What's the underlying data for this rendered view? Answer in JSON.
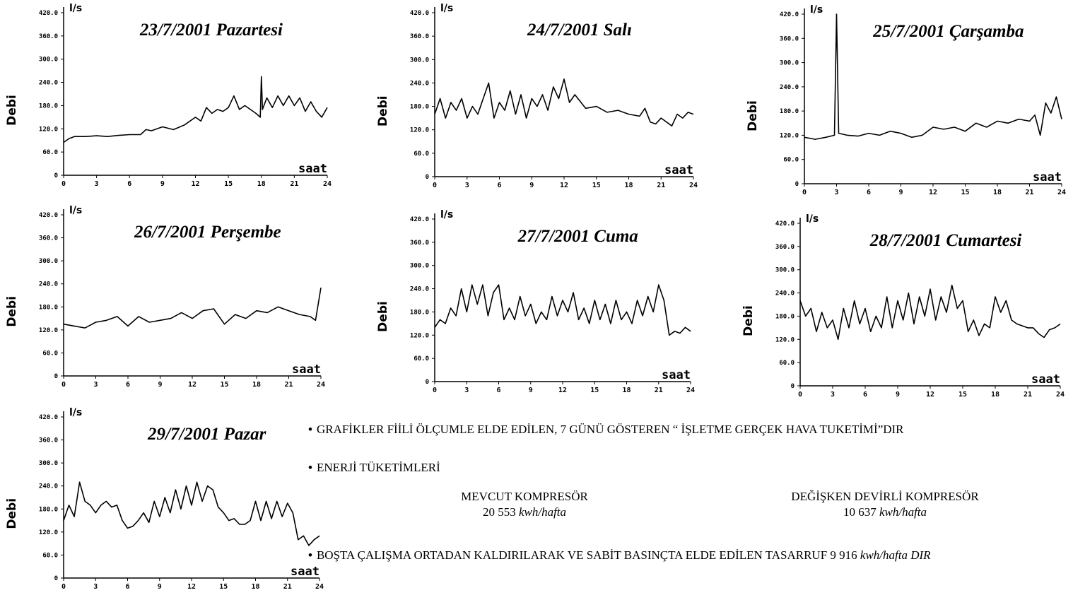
{
  "chart_data": [
    {
      "type": "line",
      "title": "23/7/2001 Pazartesi",
      "ylabel": "Debi",
      "unit": "l/s",
      "xlabel": "saat",
      "yticks": [
        "420.0",
        "360.0",
        "300.0",
        "240.0",
        "180.0",
        "120.0",
        "60.0",
        "0"
      ],
      "xticks": [
        "0",
        "3",
        "6",
        "9",
        "12",
        "15",
        "18",
        "21",
        "24"
      ],
      "xlim": [
        0,
        24
      ],
      "ylim": [
        0,
        420
      ],
      "series": [
        {
          "x": [
            0,
            0.5,
            1,
            2,
            3,
            4,
            5,
            6,
            7,
            7.5,
            8,
            9,
            10,
            11,
            12,
            12.5,
            13,
            13.5,
            14,
            14.5,
            15,
            15.5,
            16,
            16.5,
            17,
            17.5,
            17.9,
            18,
            18.1,
            18.5,
            19,
            19.5,
            20,
            20.5,
            21,
            21.5,
            22,
            22.5,
            23,
            23.5,
            24
          ],
          "y": [
            85,
            95,
            100,
            100,
            102,
            100,
            103,
            105,
            105,
            118,
            115,
            125,
            118,
            130,
            150,
            140,
            175,
            160,
            170,
            165,
            175,
            205,
            170,
            180,
            170,
            160,
            150,
            255,
            170,
            200,
            175,
            205,
            180,
            205,
            180,
            200,
            165,
            190,
            165,
            150,
            175
          ]
        }
      ]
    },
    {
      "type": "line",
      "title": "24/7/2001 Salı",
      "ylabel": "Debi",
      "unit": "l/s",
      "xlabel": "saat",
      "yticks": [
        "420.0",
        "360.0",
        "300.0",
        "240.0",
        "180.0",
        "120.0",
        "60.0",
        "0"
      ],
      "xticks": [
        "0",
        "3",
        "6",
        "9",
        "12",
        "15",
        "18",
        "21",
        "24"
      ],
      "xlim": [
        0,
        24
      ],
      "ylim": [
        0,
        420
      ],
      "series": [
        {
          "x": [
            0,
            0.5,
            1,
            1.5,
            2,
            2.5,
            3,
            3.5,
            4,
            4.5,
            5,
            5.5,
            6,
            6.5,
            7,
            7.5,
            8,
            8.5,
            9,
            9.5,
            10,
            10.5,
            11,
            11.5,
            12,
            12.5,
            13,
            14,
            15,
            16,
            17,
            18,
            19,
            19.5,
            20,
            20.5,
            21,
            22,
            22.5,
            23,
            23.5,
            24
          ],
          "y": [
            160,
            200,
            150,
            190,
            170,
            200,
            150,
            180,
            160,
            200,
            240,
            150,
            190,
            170,
            220,
            160,
            210,
            150,
            200,
            180,
            210,
            170,
            230,
            200,
            250,
            190,
            210,
            175,
            180,
            165,
            170,
            160,
            155,
            175,
            140,
            135,
            150,
            130,
            160,
            150,
            165,
            160
          ]
        }
      ]
    },
    {
      "type": "line",
      "title": "25/7/2001 Çarşamba",
      "ylabel": "Debi",
      "unit": "l/s",
      "xlabel": "saat",
      "yticks": [
        "420.0",
        "360.0",
        "300.0",
        "240.0",
        "180.0",
        "120.0",
        "60.0",
        "0"
      ],
      "xticks": [
        "0",
        "3",
        "6",
        "9",
        "12",
        "15",
        "18",
        "21",
        "24"
      ],
      "xlim": [
        0,
        24
      ],
      "ylim": [
        0,
        420
      ],
      "series": [
        {
          "x": [
            0,
            1,
            2,
            2.8,
            3,
            3.2,
            4,
            5,
            6,
            7,
            8,
            9,
            10,
            11,
            12,
            13,
            14,
            15,
            16,
            17,
            18,
            19,
            20,
            21,
            21.5,
            22,
            22.5,
            23,
            23.5,
            24
          ],
          "y": [
            115,
            110,
            115,
            120,
            420,
            125,
            120,
            118,
            125,
            120,
            130,
            125,
            115,
            120,
            140,
            135,
            140,
            130,
            150,
            140,
            155,
            150,
            160,
            155,
            170,
            120,
            200,
            175,
            215,
            160
          ]
        }
      ]
    },
    {
      "type": "line",
      "title": "26/7/2001 Perşembe",
      "ylabel": "Debi",
      "unit": "l/s",
      "xlabel": "saat",
      "yticks": [
        "420.0",
        "360.0",
        "300.0",
        "240.0",
        "180.0",
        "120.0",
        "60.0",
        "0"
      ],
      "xticks": [
        "0",
        "3",
        "6",
        "9",
        "12",
        "15",
        "18",
        "21",
        "24"
      ],
      "xlim": [
        0,
        24
      ],
      "ylim": [
        0,
        420
      ],
      "series": [
        {
          "x": [
            0,
            1,
            2,
            3,
            4,
            5,
            6,
            7,
            8,
            9,
            10,
            11,
            12,
            13,
            14,
            15,
            16,
            17,
            18,
            19,
            20,
            21,
            22,
            23,
            23.5,
            24
          ],
          "y": [
            135,
            130,
            125,
            140,
            145,
            155,
            130,
            155,
            140,
            145,
            150,
            165,
            150,
            170,
            175,
            135,
            160,
            150,
            170,
            165,
            180,
            170,
            160,
            155,
            145,
            230
          ]
        }
      ]
    },
    {
      "type": "line",
      "title": "27/7/2001 Cuma",
      "ylabel": "Debi",
      "unit": "l/s",
      "xlabel": "saat",
      "yticks": [
        "420.0",
        "360.0",
        "300.0",
        "240.0",
        "180.0",
        "120.0",
        "60.0",
        "0"
      ],
      "xticks": [
        "0",
        "3",
        "6",
        "9",
        "12",
        "15",
        "18",
        "21",
        "24"
      ],
      "xlim": [
        0,
        24
      ],
      "ylim": [
        0,
        420
      ],
      "series": [
        {
          "x": [
            0,
            0.5,
            1,
            1.5,
            2,
            2.5,
            3,
            3.5,
            4,
            4.5,
            5,
            5.5,
            6,
            6.5,
            7,
            7.5,
            8,
            8.5,
            9,
            9.5,
            10,
            10.5,
            11,
            11.5,
            12,
            12.5,
            13,
            13.5,
            14,
            14.5,
            15,
            15.5,
            16,
            16.5,
            17,
            17.5,
            18,
            18.5,
            19,
            19.5,
            20,
            20.5,
            21,
            21.5,
            22,
            22.5,
            23,
            23.5,
            24
          ],
          "y": [
            140,
            160,
            150,
            190,
            170,
            240,
            180,
            250,
            200,
            250,
            170,
            230,
            250,
            160,
            190,
            160,
            220,
            170,
            200,
            150,
            180,
            160,
            220,
            170,
            210,
            180,
            230,
            160,
            190,
            150,
            210,
            160,
            200,
            150,
            210,
            160,
            180,
            150,
            210,
            170,
            220,
            180,
            250,
            210,
            120,
            130,
            125,
            140,
            130
          ]
        }
      ]
    },
    {
      "type": "line",
      "title": "28/7/2001 Cumartesi",
      "ylabel": "Debi",
      "unit": "l/s",
      "xlabel": "saat",
      "yticks": [
        "420.0",
        "360.0",
        "300.0",
        "240.0",
        "180.0",
        "120.0",
        "60.0",
        "0"
      ],
      "xticks": [
        "0",
        "3",
        "6",
        "9",
        "12",
        "15",
        "18",
        "21",
        "24"
      ],
      "xlim": [
        0,
        24
      ],
      "ylim": [
        0,
        420
      ],
      "series": [
        {
          "x": [
            0,
            0.5,
            1,
            1.5,
            2,
            2.5,
            3,
            3.5,
            4,
            4.5,
            5,
            5.5,
            6,
            6.5,
            7,
            7.5,
            8,
            8.5,
            9,
            9.5,
            10,
            10.5,
            11,
            11.5,
            12,
            12.5,
            13,
            13.5,
            14,
            14.5,
            15,
            15.5,
            16,
            16.5,
            17,
            17.5,
            18,
            18.5,
            19,
            19.5,
            20,
            20.5,
            21,
            21.5,
            22,
            22.5,
            23,
            23.5,
            24
          ],
          "y": [
            220,
            180,
            200,
            140,
            190,
            150,
            170,
            120,
            200,
            150,
            220,
            160,
            200,
            140,
            180,
            150,
            230,
            150,
            220,
            170,
            240,
            160,
            230,
            180,
            250,
            170,
            230,
            190,
            260,
            200,
            220,
            140,
            170,
            130,
            160,
            150,
            230,
            190,
            220,
            170,
            160,
            155,
            150,
            150,
            135,
            125,
            145,
            150,
            160
          ]
        }
      ]
    },
    {
      "type": "line",
      "title": "29/7/2001 Pazar",
      "ylabel": "Debi",
      "unit": "l/s",
      "xlabel": "saat",
      "yticks": [
        "420.0",
        "360.0",
        "300.0",
        "240.0",
        "180.0",
        "120.0",
        "60.0",
        "0"
      ],
      "xticks": [
        "0",
        "3",
        "6",
        "9",
        "12",
        "15",
        "18",
        "21",
        "24"
      ],
      "xlim": [
        0,
        24
      ],
      "ylim": [
        0,
        420
      ],
      "series": [
        {
          "x": [
            0,
            0.5,
            1,
            1.5,
            2,
            2.5,
            3,
            3.5,
            4,
            4.5,
            5,
            5.5,
            6,
            6.5,
            7,
            7.5,
            8,
            8.5,
            9,
            9.5,
            10,
            10.5,
            11,
            11.5,
            12,
            12.5,
            13,
            13.5,
            14,
            14.5,
            15,
            15.5,
            16,
            16.5,
            17,
            17.5,
            18,
            18.5,
            19,
            19.5,
            20,
            20.5,
            21,
            21.5,
            22,
            22.5,
            23,
            23.5,
            24
          ],
          "y": [
            150,
            190,
            160,
            250,
            200,
            190,
            170,
            190,
            200,
            185,
            190,
            150,
            130,
            135,
            150,
            170,
            145,
            200,
            160,
            210,
            170,
            230,
            180,
            240,
            190,
            250,
            200,
            240,
            230,
            185,
            170,
            150,
            155,
            140,
            140,
            150,
            200,
            150,
            200,
            155,
            200,
            160,
            195,
            170,
            100,
            110,
            85,
            100,
            110
          ]
        }
      ]
    }
  ],
  "notes": {
    "line1": "GRAFİKLER FİİLİ ÖLÇUMLE ELDE EDİLEN, 7 GÜNÜ GÖSTEREN “ İŞLETME GERÇEK HAVA TUKETİMİ”DIR",
    "line2": "ENERJİ TÜKETİMLERİ",
    "col1_title": "MEVCUT KOMPRESÖR",
    "col1_value": "20 553",
    "col1_unit": "kwh/hafta",
    "col2_title": "DEĞİŞKEN DEVİRLİ KOMPRESÖR",
    "col2_value": "10 637",
    "col2_unit": "kwh/hafta",
    "line3_main": "BOŞTA ÇALIŞMA ORTADAN KALDIRILARAK VE SABİT BASINÇTA ELDE EDİLEN TASARRUF 9 916",
    "line3_unit": "kwh/hafta DIR",
    "bullet": "•"
  }
}
